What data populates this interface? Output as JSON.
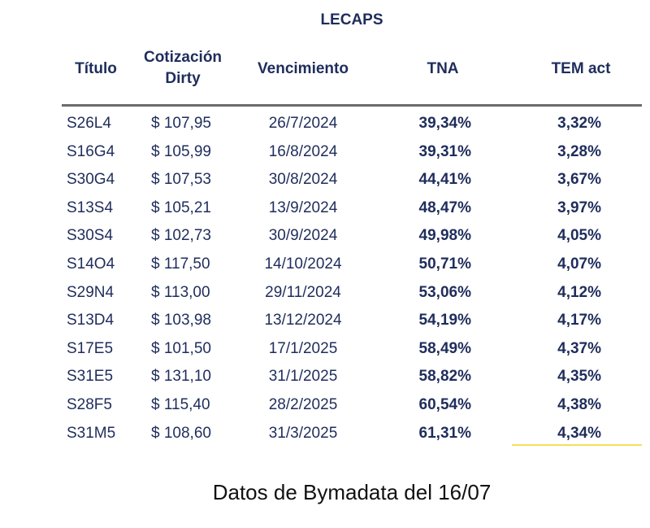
{
  "title": "LECAPS",
  "headers": {
    "titulo": "Título",
    "cotizacion_line1": "Cotización",
    "cotizacion_line2": "Dirty",
    "vencimiento": "Vencimiento",
    "tna": "TNA",
    "tem": "TEM act"
  },
  "rows": [
    {
      "titulo": "S26L4",
      "precio": "$ 107,95",
      "vencimiento": "26/7/2024",
      "tna": "39,34%",
      "tem": "3,32%"
    },
    {
      "titulo": "S16G4",
      "precio": "$ 105,99",
      "vencimiento": "16/8/2024",
      "tna": "39,31%",
      "tem": "3,28%"
    },
    {
      "titulo": "S30G4",
      "precio": "$ 107,53",
      "vencimiento": "30/8/2024",
      "tna": "44,41%",
      "tem": "3,67%"
    },
    {
      "titulo": "S13S4",
      "precio": "$ 105,21",
      "vencimiento": "13/9/2024",
      "tna": "48,47%",
      "tem": "3,97%"
    },
    {
      "titulo": "S30S4",
      "precio": "$ 102,73",
      "vencimiento": "30/9/2024",
      "tna": "49,98%",
      "tem": "4,05%"
    },
    {
      "titulo": "S14O4",
      "precio": "$ 117,50",
      "vencimiento": "14/10/2024",
      "tna": "50,71%",
      "tem": "4,07%"
    },
    {
      "titulo": "S29N4",
      "precio": "$ 113,00",
      "vencimiento": "29/11/2024",
      "tna": "53,06%",
      "tem": "4,12%"
    },
    {
      "titulo": "S13D4",
      "precio": "$ 103,98",
      "vencimiento": "13/12/2024",
      "tna": "54,19%",
      "tem": "4,17%"
    },
    {
      "titulo": "S17E5",
      "precio": "$ 101,50",
      "vencimiento": "17/1/2025",
      "tna": "58,49%",
      "tem": "4,37%"
    },
    {
      "titulo": "S31E5",
      "precio": "$ 131,10",
      "vencimiento": "31/1/2025",
      "tna": "58,82%",
      "tem": "4,35%"
    },
    {
      "titulo": "S28F5",
      "precio": "$ 115,40",
      "vencimiento": "28/2/2025",
      "tna": "60,54%",
      "tem": "4,38%"
    },
    {
      "titulo": "S31M5",
      "precio": "$ 108,60",
      "vencimiento": "31/3/2025",
      "tna": "61,31%",
      "tem": "4,34%"
    }
  ],
  "footer": "Datos de Bymadata del 16/07",
  "colors": {
    "text": "#1f2d5c",
    "rule": "#6b6b6b",
    "highlight": "#f2e05a"
  }
}
